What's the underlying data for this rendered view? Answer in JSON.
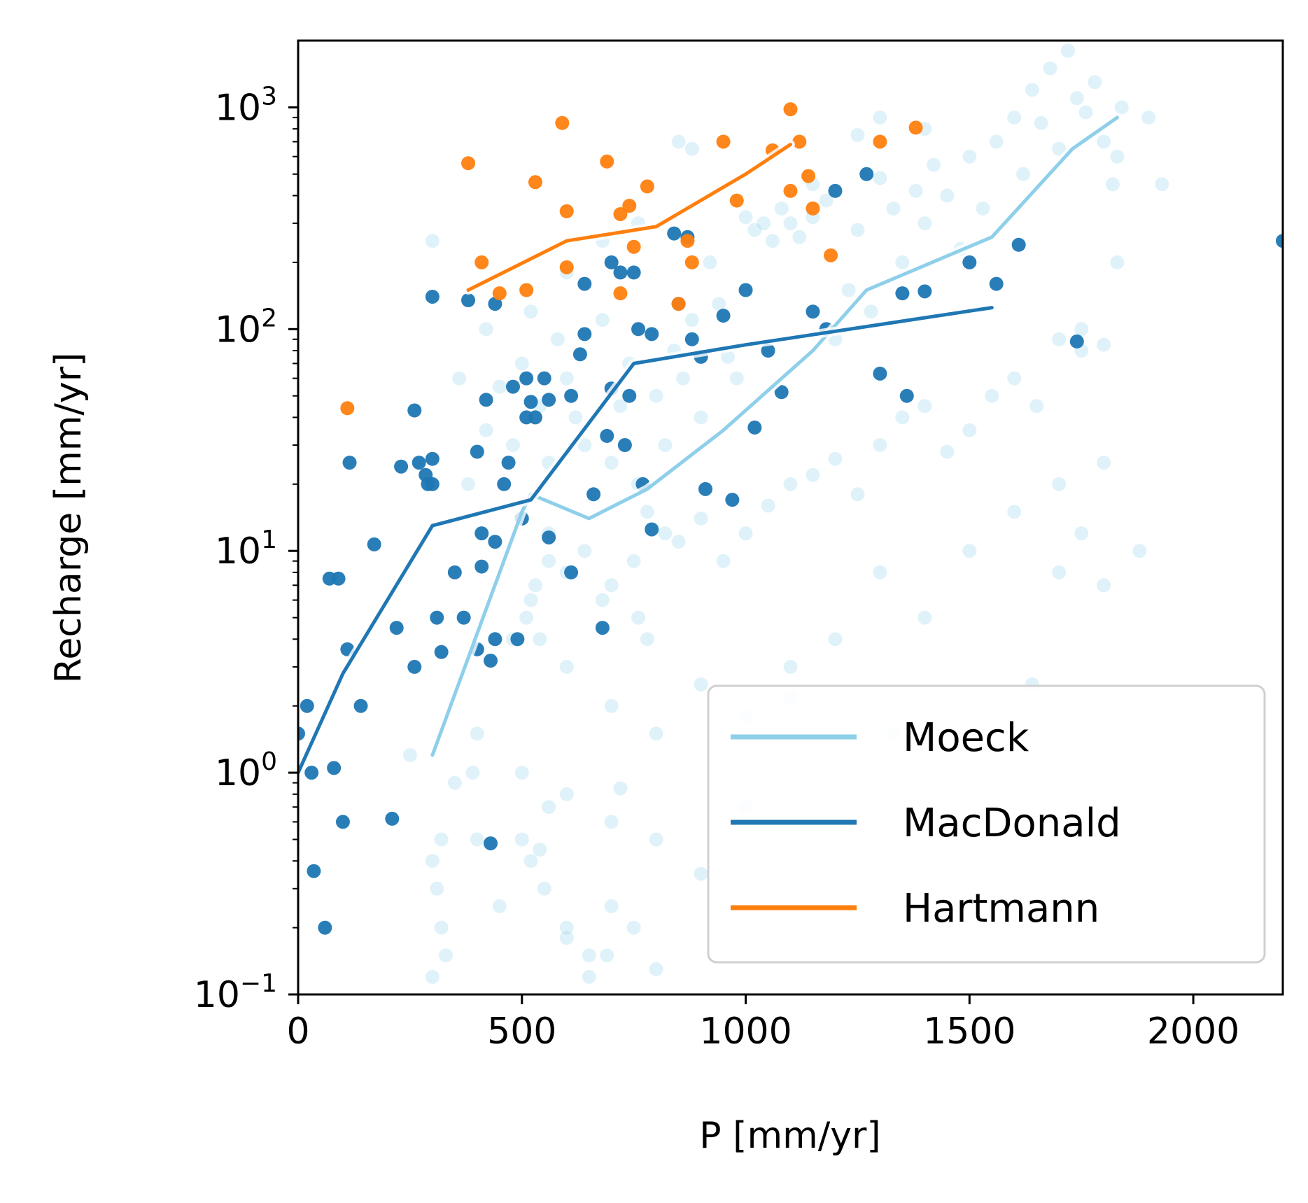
{
  "chart_data": {
    "type": "scatter",
    "xlabel": "P [mm/yr]",
    "ylabel": "Recharge [mm/yr]",
    "xlim": [
      0,
      2200
    ],
    "ylim": [
      0.1,
      2000
    ],
    "yscale": "log",
    "xticks": [
      0,
      500,
      1000,
      1500,
      2000
    ],
    "xtick_labels": [
      "0",
      "500",
      "1000",
      "1500",
      "2000"
    ],
    "yticks": [
      {
        "value": 0.1,
        "base": "10",
        "exp": "−1"
      },
      {
        "value": 1,
        "base": "10",
        "exp": "0"
      },
      {
        "value": 10,
        "base": "10",
        "exp": "1"
      },
      {
        "value": 100,
        "base": "10",
        "exp": "2"
      },
      {
        "value": 1000,
        "base": "10",
        "exp": "3"
      }
    ],
    "grid": false,
    "legend_position": "lower-right",
    "series": [
      {
        "name": "Moeck",
        "color": "#8ecfea",
        "line": [
          [
            300,
            1.2
          ],
          [
            500,
            15
          ],
          [
            520,
            18
          ],
          [
            650,
            14
          ],
          [
            780,
            19
          ],
          [
            950,
            35
          ],
          [
            1150,
            80
          ],
          [
            1270,
            150
          ],
          [
            1550,
            260
          ],
          [
            1730,
            650
          ],
          [
            1830,
            900
          ]
        ],
        "points": [
          [
            420,
            35
          ],
          [
            450,
            55
          ],
          [
            480,
            30
          ],
          [
            500,
            70
          ],
          [
            520,
            120
          ],
          [
            540,
            45
          ],
          [
            560,
            25
          ],
          [
            580,
            90
          ],
          [
            600,
            60
          ],
          [
            620,
            40
          ],
          [
            640,
            30
          ],
          [
            660,
            18
          ],
          [
            680,
            110
          ],
          [
            700,
            25
          ],
          [
            720,
            45
          ],
          [
            740,
            70
          ],
          [
            760,
            20
          ],
          [
            780,
            15
          ],
          [
            800,
            50
          ],
          [
            820,
            30
          ],
          [
            840,
            80
          ],
          [
            860,
            60
          ],
          [
            880,
            110
          ],
          [
            900,
            40
          ],
          [
            920,
            200
          ],
          [
            940,
            130
          ],
          [
            960,
            75
          ],
          [
            980,
            60
          ],
          [
            1000,
            320
          ],
          [
            1020,
            280
          ],
          [
            1040,
            300
          ],
          [
            1060,
            250
          ],
          [
            1080,
            350
          ],
          [
            1100,
            300
          ],
          [
            1120,
            260
          ],
          [
            1150,
            320
          ],
          [
            1180,
            380
          ],
          [
            1200,
            90
          ],
          [
            1230,
            150
          ],
          [
            1250,
            280
          ],
          [
            1280,
            120
          ],
          [
            1300,
            480
          ],
          [
            1330,
            350
          ],
          [
            1350,
            200
          ],
          [
            1380,
            420
          ],
          [
            1400,
            300
          ],
          [
            1420,
            550
          ],
          [
            1450,
            400
          ],
          [
            1480,
            230
          ],
          [
            1500,
            600
          ],
          [
            1530,
            350
          ],
          [
            1560,
            700
          ],
          [
            1600,
            900
          ],
          [
            1620,
            500
          ],
          [
            1640,
            1200
          ],
          [
            1660,
            850
          ],
          [
            1680,
            1500
          ],
          [
            1700,
            650
          ],
          [
            1720,
            1800
          ],
          [
            1740,
            1100
          ],
          [
            1760,
            950
          ],
          [
            1780,
            1300
          ],
          [
            1800,
            700
          ],
          [
            1820,
            450
          ],
          [
            1840,
            1000
          ],
          [
            520,
            6
          ],
          [
            540,
            4
          ],
          [
            560,
            12
          ],
          [
            600,
            8
          ],
          [
            640,
            10
          ],
          [
            700,
            7
          ],
          [
            750,
            9
          ],
          [
            820,
            12
          ],
          [
            600,
            3
          ],
          [
            700,
            2
          ],
          [
            800,
            1.5
          ],
          [
            900,
            2.5
          ],
          [
            1000,
            1.8
          ],
          [
            1100,
            3
          ],
          [
            500,
            0.5
          ],
          [
            550,
            0.3
          ],
          [
            600,
            0.2
          ],
          [
            650,
            0.15
          ],
          [
            700,
            0.25
          ],
          [
            300,
            0.4
          ],
          [
            310,
            0.3
          ],
          [
            320,
            0.2
          ],
          [
            330,
            0.15
          ],
          [
            300,
            0.12
          ],
          [
            320,
            0.5
          ],
          [
            500,
            1.0
          ],
          [
            600,
            0.8
          ],
          [
            700,
            0.6
          ],
          [
            800,
            0.5
          ],
          [
            900,
            0.35
          ],
          [
            1000,
            0.7
          ],
          [
            1200,
            4
          ],
          [
            1300,
            8
          ],
          [
            1400,
            5
          ],
          [
            1500,
            10
          ],
          [
            1600,
            15
          ],
          [
            1700,
            20
          ],
          [
            1750,
            12
          ],
          [
            1800,
            25
          ],
          [
            1700,
            8
          ],
          [
            1800,
            7
          ],
          [
            1640,
            2.5
          ],
          [
            1330,
            1.5
          ],
          [
            1100,
            2.2
          ],
          [
            380,
            20
          ],
          [
            360,
            60
          ],
          [
            420,
            100
          ],
          [
            300,
            250
          ],
          [
            600,
            180
          ],
          [
            680,
            250
          ],
          [
            760,
            300
          ],
          [
            850,
            700
          ],
          [
            880,
            650
          ],
          [
            1150,
            450
          ],
          [
            1250,
            750
          ],
          [
            1300,
            900
          ],
          [
            1400,
            800
          ],
          [
            1750,
            80
          ],
          [
            1900,
            900
          ],
          [
            1930,
            450
          ],
          [
            1880,
            10
          ],
          [
            390,
            1.0
          ],
          [
            400,
            1.5
          ],
          [
            250,
            1.2
          ],
          [
            350,
            0.9
          ],
          [
            400,
            0.5
          ],
          [
            450,
            0.25
          ],
          [
            540,
            0.45
          ],
          [
            600,
            0.18
          ],
          [
            650,
            0.12
          ],
          [
            690,
            0.15
          ],
          [
            750,
            0.2
          ],
          [
            800,
            0.13
          ],
          [
            520,
            0.4
          ],
          [
            560,
            0.7
          ],
          [
            720,
            0.85
          ],
          [
            480,
            4
          ],
          [
            510,
            5
          ],
          [
            530,
            7
          ],
          [
            560,
            9
          ],
          [
            680,
            6
          ],
          [
            760,
            5
          ],
          [
            780,
            4
          ],
          [
            850,
            11
          ],
          [
            900,
            14
          ],
          [
            950,
            9
          ],
          [
            1000,
            12
          ],
          [
            1050,
            16
          ],
          [
            1100,
            20
          ],
          [
            1150,
            22
          ],
          [
            1200,
            26
          ],
          [
            1250,
            18
          ],
          [
            1300,
            30
          ],
          [
            1350,
            40
          ],
          [
            1400,
            45
          ],
          [
            1450,
            28
          ],
          [
            1500,
            35
          ],
          [
            1550,
            50
          ],
          [
            1600,
            60
          ],
          [
            1650,
            45
          ],
          [
            1700,
            90
          ],
          [
            1750,
            100
          ],
          [
            1800,
            85
          ],
          [
            1830,
            200
          ],
          [
            1830,
            600
          ]
        ]
      },
      {
        "name": "MacDonald",
        "color": "#1f77b4",
        "line": [
          [
            0,
            1.0
          ],
          [
            100,
            2.8
          ],
          [
            300,
            13
          ],
          [
            520,
            17
          ],
          [
            750,
            70
          ],
          [
            1000,
            85
          ],
          [
            1550,
            125
          ]
        ],
        "points": [
          [
            0,
            1.5
          ],
          [
            20,
            2.0
          ],
          [
            30,
            1.0
          ],
          [
            35,
            0.36
          ],
          [
            60,
            0.2
          ],
          [
            70,
            7.5
          ],
          [
            80,
            1.05
          ],
          [
            90,
            7.5
          ],
          [
            100,
            0.6
          ],
          [
            110,
            3.6
          ],
          [
            115,
            25
          ],
          [
            140,
            2.0
          ],
          [
            170,
            10.7
          ],
          [
            210,
            0.62
          ],
          [
            220,
            4.5
          ],
          [
            230,
            24
          ],
          [
            260,
            43
          ],
          [
            260,
            3.0
          ],
          [
            270,
            25
          ],
          [
            285,
            22
          ],
          [
            290,
            20
          ],
          [
            300,
            26
          ],
          [
            300,
            140
          ],
          [
            310,
            5.0
          ],
          [
            320,
            3.5
          ],
          [
            350,
            8
          ],
          [
            370,
            5
          ],
          [
            380,
            135
          ],
          [
            400,
            28
          ],
          [
            410,
            12
          ],
          [
            410,
            8.5
          ],
          [
            420,
            48
          ],
          [
            430,
            3.2
          ],
          [
            440,
            4
          ],
          [
            440,
            11
          ],
          [
            460,
            20
          ],
          [
            470,
            25
          ],
          [
            490,
            4
          ],
          [
            480,
            55
          ],
          [
            500,
            14
          ],
          [
            510,
            60
          ],
          [
            520,
            47
          ],
          [
            530,
            40
          ],
          [
            550,
            60
          ],
          [
            560,
            48
          ],
          [
            560,
            11.5
          ],
          [
            610,
            50
          ],
          [
            610,
            8
          ],
          [
            630,
            77
          ],
          [
            640,
            95
          ],
          [
            640,
            160
          ],
          [
            660,
            18
          ],
          [
            680,
            4.5
          ],
          [
            690,
            33
          ],
          [
            700,
            200
          ],
          [
            700,
            54
          ],
          [
            720,
            180
          ],
          [
            730,
            30
          ],
          [
            740,
            50
          ],
          [
            750,
            180
          ],
          [
            760,
            100
          ],
          [
            770,
            20
          ],
          [
            790,
            12.5
          ],
          [
            790,
            95
          ],
          [
            840,
            270
          ],
          [
            850,
            130
          ],
          [
            870,
            260
          ],
          [
            880,
            90
          ],
          [
            900,
            75
          ],
          [
            910,
            19
          ],
          [
            950,
            115
          ],
          [
            970,
            17
          ],
          [
            1000,
            150
          ],
          [
            1020,
            36
          ],
          [
            1050,
            80
          ],
          [
            1080,
            52
          ],
          [
            1150,
            120
          ],
          [
            1180,
            100
          ],
          [
            1200,
            420
          ],
          [
            1270,
            500
          ],
          [
            1300,
            63
          ],
          [
            1350,
            145
          ],
          [
            1360,
            50
          ],
          [
            1400,
            148
          ],
          [
            1500,
            200
          ],
          [
            1560,
            160
          ],
          [
            1610,
            240
          ],
          [
            1740,
            88
          ],
          [
            2200,
            250
          ],
          [
            400,
            3.6
          ],
          [
            430,
            0.48
          ],
          [
            440,
            130
          ],
          [
            510,
            40
          ],
          [
            300,
            20
          ]
        ]
      },
      {
        "name": "Hartmann",
        "color": "#ff7f0e",
        "line": [
          [
            380,
            150
          ],
          [
            600,
            250
          ],
          [
            800,
            290
          ],
          [
            1000,
            500
          ],
          [
            1100,
            680
          ]
        ],
        "points": [
          [
            110,
            44
          ],
          [
            380,
            560
          ],
          [
            410,
            200
          ],
          [
            450,
            145
          ],
          [
            510,
            150
          ],
          [
            530,
            460
          ],
          [
            590,
            850
          ],
          [
            600,
            340
          ],
          [
            600,
            190
          ],
          [
            690,
            570
          ],
          [
            720,
            330
          ],
          [
            720,
            145
          ],
          [
            740,
            360
          ],
          [
            750,
            235
          ],
          [
            780,
            440
          ],
          [
            850,
            130
          ],
          [
            870,
            250
          ],
          [
            880,
            200
          ],
          [
            950,
            700
          ],
          [
            980,
            380
          ],
          [
            1060,
            640
          ],
          [
            1100,
            980
          ],
          [
            1100,
            420
          ],
          [
            1120,
            700
          ],
          [
            1140,
            490
          ],
          [
            1150,
            350
          ],
          [
            1190,
            215
          ],
          [
            1300,
            700
          ],
          [
            1380,
            810
          ]
        ]
      }
    ]
  }
}
